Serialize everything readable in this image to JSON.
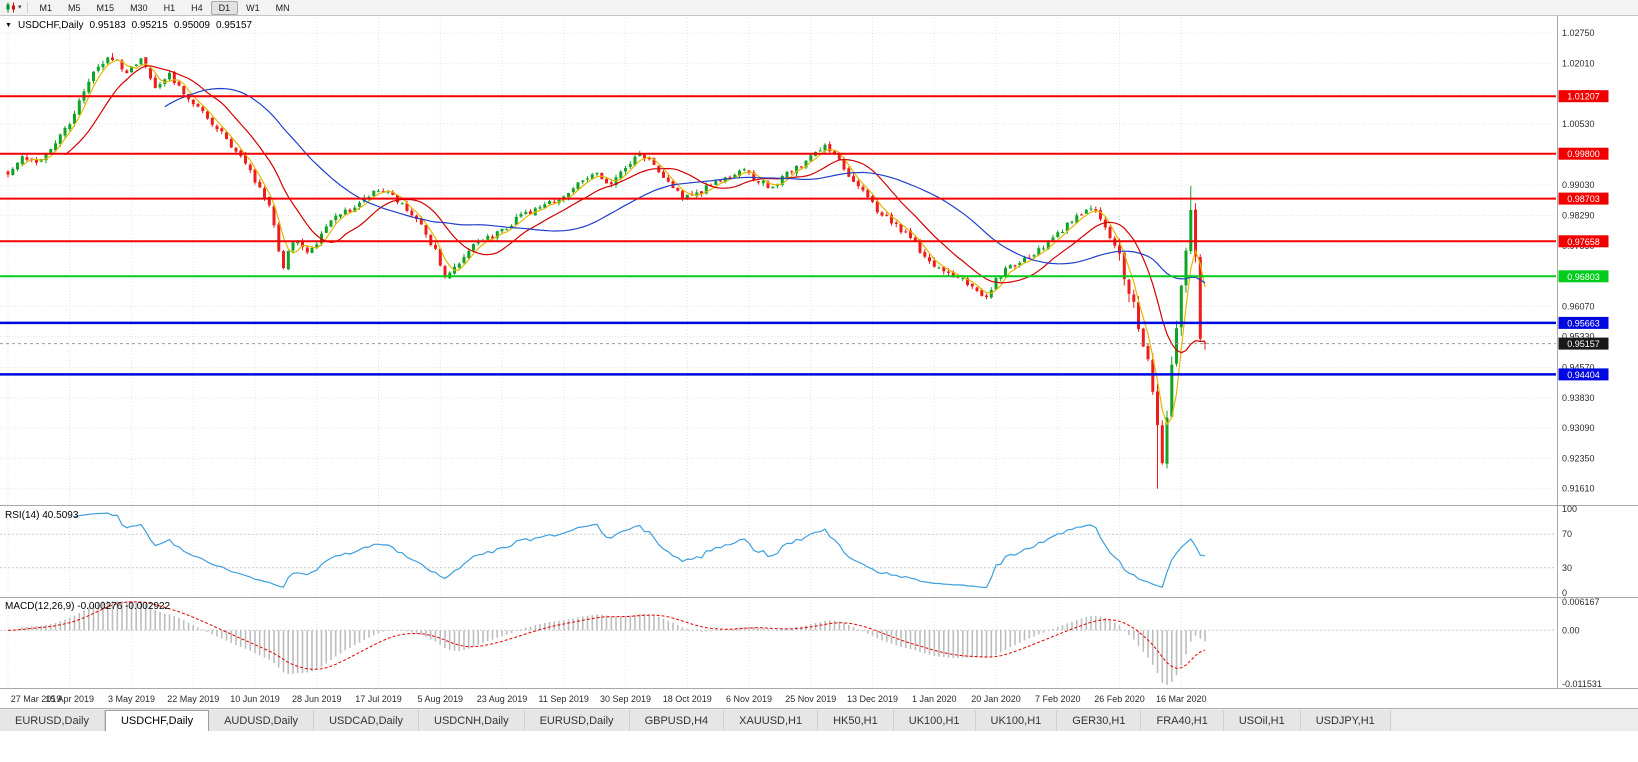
{
  "toolbar": {
    "timeframes": [
      "M1",
      "M5",
      "M15",
      "M30",
      "H1",
      "H4",
      "D1",
      "W1",
      "MN"
    ],
    "active_timeframe": "D1",
    "chart_menu_icon": "candlestick-chart"
  },
  "chart_header": {
    "collapse_icon": "▼",
    "symbol": "USDCHF,Daily",
    "open": "0.95183",
    "high": "0.95215",
    "low": "0.95009",
    "close": "0.95157"
  },
  "chart_data": {
    "type": "candlestick",
    "title": "USDCHF,Daily",
    "num_candles": 253,
    "label_step": 13,
    "x_labels": [
      "27 Mar 2019",
      "15 Apr 2019",
      "3 May 2019",
      "22 May 2019",
      "10 Jun 2019",
      "28 Jun 2019",
      "17 Jul 2019",
      "5 Aug 2019",
      "23 Aug 2019",
      "11 Sep 2019",
      "30 Sep 2019",
      "18 Oct 2019",
      "6 Nov 2019",
      "25 Nov 2019",
      "13 Dec 2019",
      "1 Jan 2020",
      "20 Jan 2020",
      "7 Feb 2020",
      "26 Feb 2020",
      "16 Mar 2020"
    ],
    "y_range": [
      0.9131,
      1.0302
    ],
    "y_axis_values": [
      1.0275,
      1.0201,
      1.0127,
      1.0053,
      0.9979,
      0.9903,
      0.9829,
      0.9755,
      0.9681,
      0.9607,
      0.9533,
      0.9457,
      0.9383,
      0.9309,
      0.9235,
      0.9161
    ],
    "y_axis_labels": [
      "1.02750",
      "1.02010",
      "1.01270",
      "1.00530",
      "0.99790",
      "0.99030",
      "0.98290",
      "0.97550",
      "0.96810",
      "0.96070",
      "0.95330",
      "0.94570",
      "0.93830",
      "0.93090",
      "0.92350",
      "0.91610"
    ],
    "price_path": [
      [
        0,
        0.9935
      ],
      [
        3,
        0.9975
      ],
      [
        6,
        0.996
      ],
      [
        10,
        1.001
      ],
      [
        13,
        1.0055
      ],
      [
        16,
        1.013
      ],
      [
        19,
        1.0195
      ],
      [
        22,
        1.0215
      ],
      [
        25,
        1.018
      ],
      [
        28,
        1.021
      ],
      [
        31,
        1.0145
      ],
      [
        34,
        1.0175
      ],
      [
        37,
        1.013
      ],
      [
        41,
        1.0085
      ],
      [
        45,
        1.003
      ],
      [
        49,
        0.997
      ],
      [
        52,
        0.9915
      ],
      [
        55,
        0.986
      ],
      [
        57,
        0.974
      ],
      [
        58,
        0.9705
      ],
      [
        60,
        0.977
      ],
      [
        63,
        0.9745
      ],
      [
        65,
        0.9765
      ],
      [
        68,
        0.982
      ],
      [
        72,
        0.9845
      ],
      [
        75,
        0.987
      ],
      [
        78,
        0.9895
      ],
      [
        81,
        0.9875
      ],
      [
        84,
        0.984
      ],
      [
        87,
        0.98
      ],
      [
        90,
        0.9745
      ],
      [
        92,
        0.9672
      ],
      [
        94,
        0.97
      ],
      [
        97,
        0.9745
      ],
      [
        101,
        0.9775
      ],
      [
        104,
        0.979
      ],
      [
        108,
        0.983
      ],
      [
        112,
        0.9845
      ],
      [
        115,
        0.9865
      ],
      [
        118,
        0.9885
      ],
      [
        121,
        0.9915
      ],
      [
        124,
        0.993
      ],
      [
        127,
        0.9905
      ],
      [
        130,
        0.9945
      ],
      [
        133,
        0.998
      ],
      [
        136,
        0.9955
      ],
      [
        139,
        0.9915
      ],
      [
        142,
        0.9875
      ],
      [
        145,
        0.988
      ],
      [
        148,
        0.9905
      ],
      [
        152,
        0.9925
      ],
      [
        155,
        0.9935
      ],
      [
        158,
        0.9915
      ],
      [
        161,
        0.9895
      ],
      [
        164,
        0.993
      ],
      [
        167,
        0.9955
      ],
      [
        170,
        0.9985
      ],
      [
        172,
        1.0005
      ],
      [
        174,
        0.9975
      ],
      [
        177,
        0.993
      ],
      [
        180,
        0.9885
      ],
      [
        183,
        0.984
      ],
      [
        186,
        0.9815
      ],
      [
        189,
        0.9785
      ],
      [
        192,
        0.9745
      ],
      [
        195,
        0.971
      ],
      [
        198,
        0.969
      ],
      [
        201,
        0.967
      ],
      [
        204,
        0.9645
      ],
      [
        206,
        0.963
      ],
      [
        208,
        0.9675
      ],
      [
        211,
        0.9705
      ],
      [
        214,
        0.972
      ],
      [
        217,
        0.9745
      ],
      [
        220,
        0.977
      ],
      [
        223,
        0.9805
      ],
      [
        226,
        0.9835
      ],
      [
        228,
        0.9848
      ],
      [
        230,
        0.9825
      ],
      [
        232,
        0.978
      ],
      [
        234,
        0.9725
      ],
      [
        236,
        0.965
      ],
      [
        238,
        0.956
      ],
      [
        240,
        0.946
      ],
      [
        241,
        0.9395
      ],
      [
        242,
        0.93
      ],
      [
        243,
        0.924
      ],
      [
        244,
        0.933
      ],
      [
        245,
        0.945
      ],
      [
        246,
        0.9545
      ],
      [
        247,
        0.964
      ],
      [
        248,
        0.976
      ],
      [
        249,
        0.986
      ],
      [
        250,
        0.972
      ],
      [
        251,
        0.9535
      ],
      [
        252,
        0.95157
      ]
    ],
    "forced": {
      "high_vol_zone": [
        234,
        251
      ],
      "crash_low_index": 242,
      "crash_low": 0.9161,
      "spike_high_index": 249,
      "spike_high": 0.9901,
      "peak_index": 22,
      "peak_high": 1.0226,
      "last_candle": {
        "open": 0.95183,
        "high": 0.95215,
        "low": 0.95009,
        "close": 0.95157
      }
    },
    "candle_up_color": "#10a326",
    "candle_down_color": "#ee1c1c",
    "moving_averages": [
      {
        "name": "fast-ma",
        "period": 4,
        "color": "#e3b800"
      },
      {
        "name": "medium-ma",
        "period": 13,
        "color": "#d40000"
      },
      {
        "name": "slow-ma",
        "period": 34,
        "color": "#2240c8"
      }
    ],
    "hlines": [
      {
        "value": 1.01207,
        "label": "1.01207",
        "color": "#f00000",
        "width": 2
      },
      {
        "value": 0.998,
        "label": "0.99800",
        "color": "#f00000",
        "width": 2
      },
      {
        "value": 0.98703,
        "label": "0.98703",
        "color": "#f00000",
        "width": 2
      },
      {
        "value": 0.97658,
        "label": "0.97658",
        "color": "#f00000",
        "width": 2
      },
      {
        "value": 0.96803,
        "label": "0.96803",
        "color": "#00cc1b",
        "width": 2
      },
      {
        "value": 0.95663,
        "label": "0.95663",
        "color": "#0008e0",
        "width": 2.5
      },
      {
        "value": 0.94404,
        "label": "0.94404",
        "color": "#0008e0",
        "width": 2.5
      }
    ],
    "current_price": {
      "value": 0.95157,
      "label": "0.95157",
      "color": "#181818"
    },
    "rsi": {
      "label": "RSI(14) 40.5093",
      "period": 14,
      "current": 40.5093,
      "levels": [
        100,
        70,
        30,
        0
      ],
      "overbought": 70,
      "oversold": 30,
      "color": "#3e9fdf"
    },
    "macd": {
      "label": "MACD(12,26,9) -0.000276 -0.002922",
      "fast": 12,
      "slow": 26,
      "signal_period": 9,
      "main_value": -0.000276,
      "signal_value": -0.002922,
      "scale_max": 0.006167,
      "scale_min": -0.011531,
      "axis": {
        "top": "0.006167",
        "zero": "0.00",
        "bottom": "-0.011531"
      },
      "hist_color": "#bdbdbd",
      "signal_color": "#e00000"
    }
  },
  "tabs": {
    "items": [
      "EURUSD,Daily",
      "USDCHF,Daily",
      "AUDUSD,Daily",
      "USDCAD,Daily",
      "USDCNH,Daily",
      "EURUSD,Daily",
      "GBPUSD,H4",
      "XAUUSD,H1",
      "HK50,H1",
      "UK100,H1",
      "UK100,H1",
      "GER30,H1",
      "FRA40,H1",
      "USOil,H1",
      "USDJPY,H1"
    ],
    "active_index": 1
  }
}
